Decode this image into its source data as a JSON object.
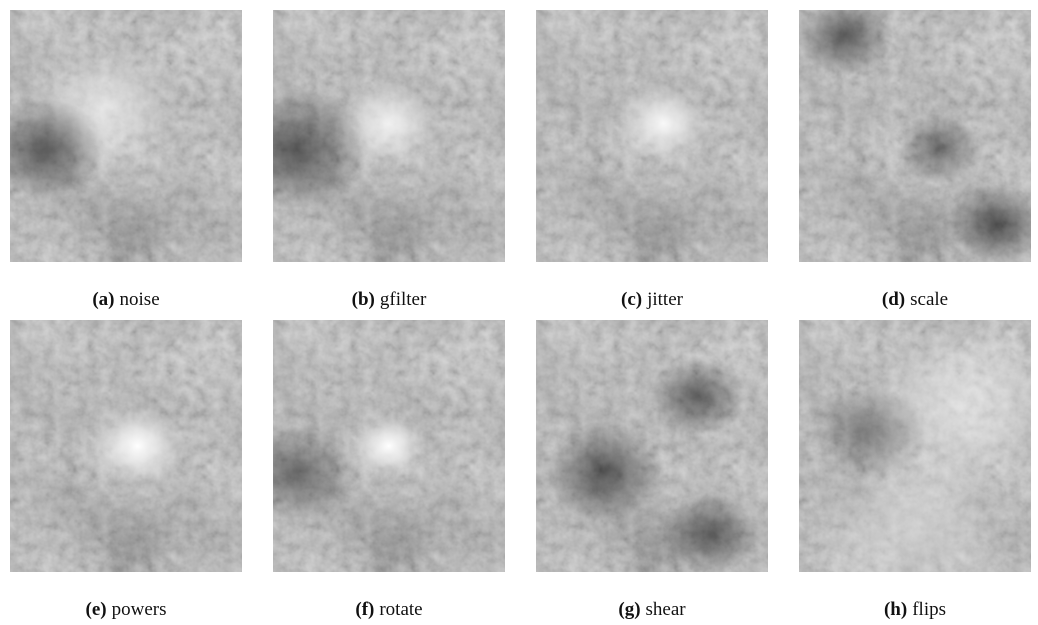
{
  "panels": [
    {
      "label": "(a)",
      "caption": "noise"
    },
    {
      "label": "(b)",
      "caption": "gfilter"
    },
    {
      "label": "(c)",
      "caption": "jitter"
    },
    {
      "label": "(d)",
      "caption": "scale"
    },
    {
      "label": "(e)",
      "caption": "powers"
    },
    {
      "label": "(f)",
      "caption": "rotate"
    },
    {
      "label": "(g)",
      "caption": "shear"
    },
    {
      "label": "(h)",
      "caption": "flips"
    }
  ]
}
